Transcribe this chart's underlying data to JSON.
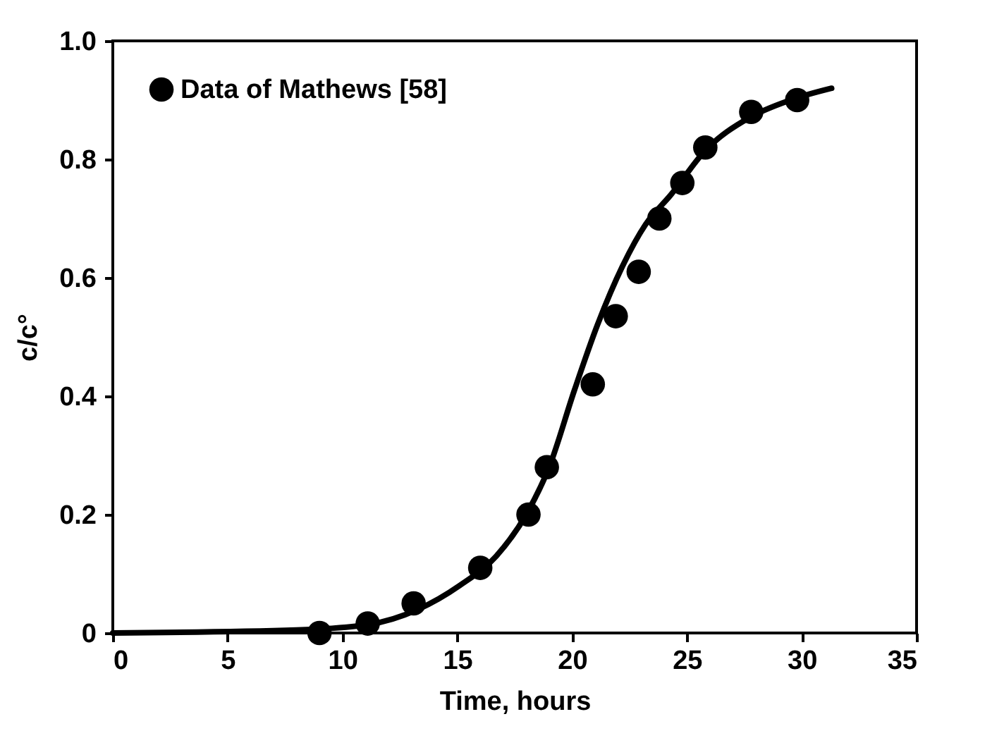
{
  "chart_data": {
    "type": "scatter",
    "xlabel": "Time, hours",
    "ylabel": "c/c°",
    "xlim": [
      0,
      35
    ],
    "xticks": [
      0,
      5,
      10,
      15,
      20,
      25,
      30,
      35
    ],
    "ylim": [
      0,
      1
    ],
    "yticks": [
      0,
      0.2,
      0.4,
      0.6,
      0.8,
      {
        "value": 1,
        "label": "1.0"
      }
    ],
    "grid": false,
    "legend": "top left",
    "series": [
      {
        "name": "Data of Mathews [58]",
        "type": "scatter",
        "marker": "circle",
        "color": "#000000",
        "x": [
          9.0,
          11.1,
          13.1,
          16.0,
          18.1,
          18.9,
          20.9,
          21.9,
          22.9,
          23.8,
          24.8,
          25.8,
          27.8,
          29.8
        ],
        "values": [
          0.0,
          0.016,
          0.05,
          0.11,
          0.2,
          0.28,
          0.42,
          0.535,
          0.61,
          0.7,
          0.76,
          0.82,
          0.88,
          0.9
        ]
      },
      {
        "type": "line",
        "line_style": "solid",
        "marker": "none",
        "color": "#000000",
        "x": [
          0,
          8.0,
          11.1,
          13.3,
          15.1,
          16.7,
          18.0,
          19.0,
          20.1,
          21.1,
          22.2,
          23.2,
          24.3,
          25.8,
          27.7,
          29.5,
          31.3
        ],
        "values": [
          0,
          0.005,
          0.014,
          0.04,
          0.08,
          0.13,
          0.2,
          0.28,
          0.41,
          0.52,
          0.62,
          0.69,
          0.74,
          0.815,
          0.87,
          0.9,
          0.92
        ]
      }
    ]
  }
}
